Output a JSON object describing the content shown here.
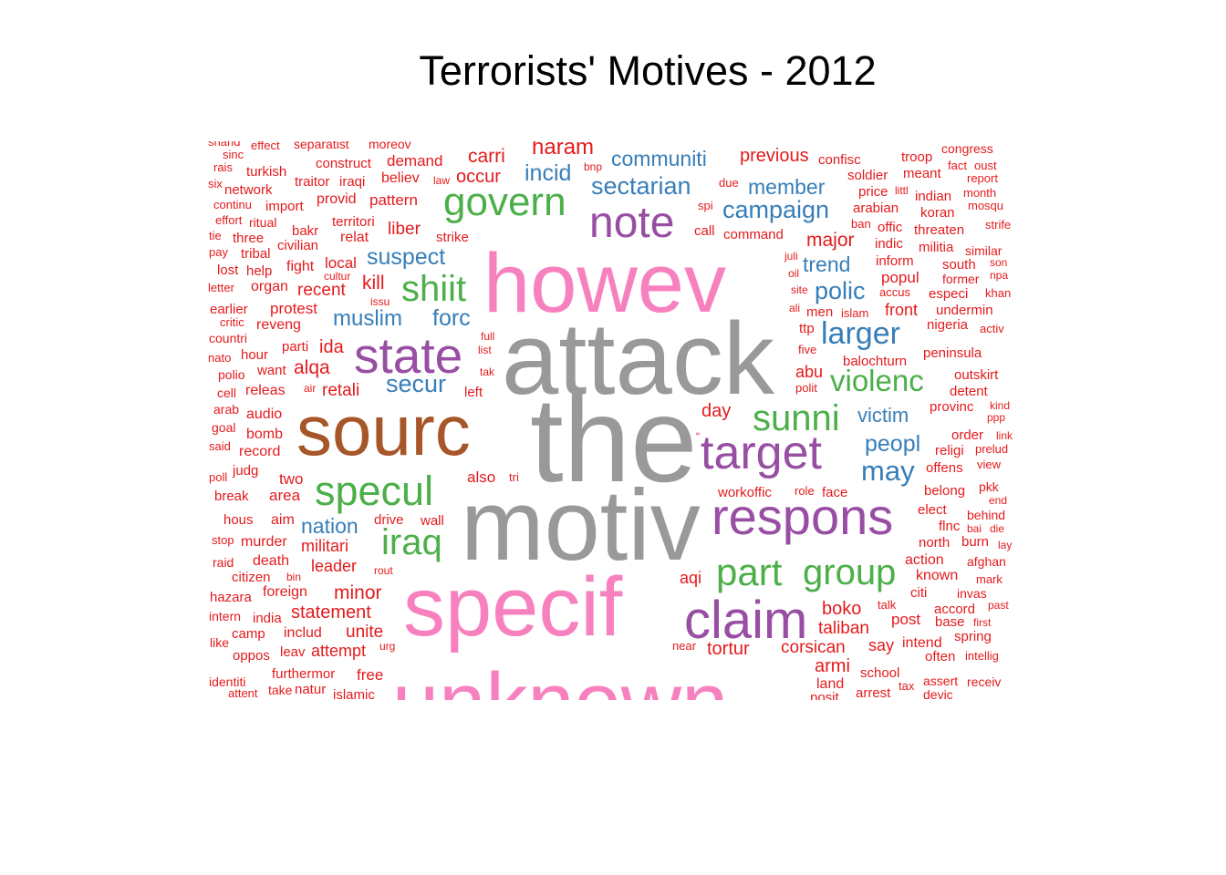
{
  "chart_data": {
    "type": "wordcloud",
    "title": "Terrorists' Motives - 2012",
    "colors": {
      "gray": "#999999",
      "pink": "#f781bf",
      "brown": "#a65628",
      "purple": "#984ea3",
      "green": "#4daf4a",
      "blue": "#377eb8",
      "red": "#e41a1c"
    },
    "words": [
      {
        "text": "the",
        "color": "gray"
      },
      {
        "text": "attack",
        "color": "gray"
      },
      {
        "text": "motiv",
        "color": "gray"
      },
      {
        "text": "howev",
        "color": "pink"
      },
      {
        "text": "specif",
        "color": "pink"
      },
      {
        "text": "unknown",
        "color": "pink"
      },
      {
        "text": "sourc",
        "color": "brown"
      },
      {
        "text": "state",
        "color": "purple"
      },
      {
        "text": "target",
        "color": "purple"
      },
      {
        "text": "respons",
        "color": "purple"
      },
      {
        "text": "claim",
        "color": "purple"
      },
      {
        "text": "note",
        "color": "purple"
      },
      {
        "text": "govern",
        "color": "green"
      },
      {
        "text": "specul",
        "color": "green"
      },
      {
        "text": "shiit",
        "color": "green"
      },
      {
        "text": "sunni",
        "color": "green"
      },
      {
        "text": "part",
        "color": "green"
      },
      {
        "text": "group",
        "color": "green"
      },
      {
        "text": "iraq",
        "color": "green"
      },
      {
        "text": "violenc",
        "color": "green"
      },
      {
        "text": "larger",
        "color": "blue"
      },
      {
        "text": "campaign",
        "color": "blue"
      },
      {
        "text": "sectarian",
        "color": "blue"
      },
      {
        "text": "member",
        "color": "blue"
      },
      {
        "text": "communiti",
        "color": "blue"
      },
      {
        "text": "incid",
        "color": "blue"
      },
      {
        "text": "polic",
        "color": "blue"
      },
      {
        "text": "may",
        "color": "blue"
      },
      {
        "text": "peopl",
        "color": "blue"
      },
      {
        "text": "suspect",
        "color": "blue"
      },
      {
        "text": "muslim",
        "color": "blue"
      },
      {
        "text": "forc",
        "color": "blue"
      },
      {
        "text": "secur",
        "color": "blue"
      },
      {
        "text": "nation",
        "color": "blue"
      },
      {
        "text": "trend",
        "color": "blue"
      },
      {
        "text": "victim",
        "color": "blue"
      },
      {
        "text": "haram",
        "color": "red"
      },
      {
        "text": "carri",
        "color": "red"
      },
      {
        "text": "occur",
        "color": "red"
      },
      {
        "text": "demand",
        "color": "red"
      },
      {
        "text": "previous",
        "color": "red"
      },
      {
        "text": "major",
        "color": "red"
      },
      {
        "text": "kill",
        "color": "red"
      },
      {
        "text": "liber",
        "color": "red"
      },
      {
        "text": "pattern",
        "color": "red"
      },
      {
        "text": "alqa",
        "color": "red"
      },
      {
        "text": "ida",
        "color": "red"
      },
      {
        "text": "retali",
        "color": "red"
      },
      {
        "text": "local",
        "color": "red"
      },
      {
        "text": "recent",
        "color": "red"
      },
      {
        "text": "militari",
        "color": "red"
      },
      {
        "text": "leader",
        "color": "red"
      },
      {
        "text": "minor",
        "color": "red"
      },
      {
        "text": "statement",
        "color": "red"
      },
      {
        "text": "unite",
        "color": "red"
      },
      {
        "text": "attempt",
        "color": "red"
      },
      {
        "text": "boko",
        "color": "red"
      },
      {
        "text": "taliban",
        "color": "red"
      },
      {
        "text": "corsican",
        "color": "red"
      },
      {
        "text": "tortur",
        "color": "red"
      },
      {
        "text": "aqi",
        "color": "red"
      },
      {
        "text": "abu",
        "color": "red"
      },
      {
        "text": "day",
        "color": "red"
      },
      {
        "text": "also",
        "color": "red"
      },
      {
        "text": "front",
        "color": "red"
      },
      {
        "text": "armi",
        "color": "red"
      },
      {
        "text": "say",
        "color": "red"
      },
      {
        "text": "post",
        "color": "red"
      },
      {
        "text": "two",
        "color": "red"
      },
      {
        "text": "area",
        "color": "red"
      },
      {
        "text": "reveng",
        "color": "red"
      },
      {
        "text": "protest",
        "color": "red"
      },
      {
        "text": "organ",
        "color": "red"
      },
      {
        "text": "fight",
        "color": "red"
      },
      {
        "text": "relat",
        "color": "red"
      },
      {
        "text": "provid",
        "color": "red"
      },
      {
        "text": "territori",
        "color": "red"
      },
      {
        "text": "construct",
        "color": "red"
      },
      {
        "text": "believ",
        "color": "red"
      },
      {
        "text": "iraqi",
        "color": "red"
      },
      {
        "text": "traitor",
        "color": "red"
      },
      {
        "text": "turkish",
        "color": "red"
      },
      {
        "text": "network",
        "color": "red"
      },
      {
        "text": "import",
        "color": "red"
      },
      {
        "text": "ritual",
        "color": "red"
      },
      {
        "text": "bakr",
        "color": "red"
      },
      {
        "text": "civilian",
        "color": "red"
      },
      {
        "text": "tribal",
        "color": "red"
      },
      {
        "text": "three",
        "color": "red"
      },
      {
        "text": "help",
        "color": "red"
      },
      {
        "text": "lost",
        "color": "red"
      },
      {
        "text": "strike",
        "color": "red"
      },
      {
        "text": "hour",
        "color": "red"
      },
      {
        "text": "want",
        "color": "red"
      },
      {
        "text": "parti",
        "color": "red"
      },
      {
        "text": "releas",
        "color": "red"
      },
      {
        "text": "audio",
        "color": "red"
      },
      {
        "text": "bomb",
        "color": "red"
      },
      {
        "text": "record",
        "color": "red"
      },
      {
        "text": "judg",
        "color": "red"
      },
      {
        "text": "break",
        "color": "red"
      },
      {
        "text": "hous",
        "color": "red"
      },
      {
        "text": "aim",
        "color": "red"
      },
      {
        "text": "murder",
        "color": "red"
      },
      {
        "text": "death",
        "color": "red"
      },
      {
        "text": "citizen",
        "color": "red"
      },
      {
        "text": "foreign",
        "color": "red"
      },
      {
        "text": "hazara",
        "color": "red"
      },
      {
        "text": "india",
        "color": "red"
      },
      {
        "text": "includ",
        "color": "red"
      },
      {
        "text": "camp",
        "color": "red"
      },
      {
        "text": "oppos",
        "color": "red"
      },
      {
        "text": "leav",
        "color": "red"
      },
      {
        "text": "furthermor",
        "color": "red"
      },
      {
        "text": "free",
        "color": "red"
      },
      {
        "text": "natur",
        "color": "red"
      },
      {
        "text": "islamic",
        "color": "red"
      },
      {
        "text": "drive",
        "color": "red"
      },
      {
        "text": "wall",
        "color": "red"
      },
      {
        "text": "command",
        "color": "red"
      },
      {
        "text": "call",
        "color": "red"
      },
      {
        "text": "soldier",
        "color": "red"
      },
      {
        "text": "price",
        "color": "red"
      },
      {
        "text": "arabian",
        "color": "red"
      },
      {
        "text": "offic",
        "color": "red"
      },
      {
        "text": "indic",
        "color": "red"
      },
      {
        "text": "inform",
        "color": "red"
      },
      {
        "text": "popul",
        "color": "red"
      },
      {
        "text": "balochturn",
        "color": "red"
      },
      {
        "text": "peninsula",
        "color": "red"
      },
      {
        "text": "detent",
        "color": "red"
      },
      {
        "text": "outskirt",
        "color": "red"
      },
      {
        "text": "provinc",
        "color": "red"
      },
      {
        "text": "order",
        "color": "red"
      },
      {
        "text": "religi",
        "color": "red"
      },
      {
        "text": "offens",
        "color": "red"
      },
      {
        "text": "belong",
        "color": "red"
      },
      {
        "text": "elect",
        "color": "red"
      },
      {
        "text": "flnc",
        "color": "red"
      },
      {
        "text": "north",
        "color": "red"
      },
      {
        "text": "burn",
        "color": "red"
      },
      {
        "text": "action",
        "color": "red"
      },
      {
        "text": "known",
        "color": "red"
      },
      {
        "text": "citi",
        "color": "red"
      },
      {
        "text": "accord",
        "color": "red"
      },
      {
        "text": "base",
        "color": "red"
      },
      {
        "text": "spring",
        "color": "red"
      },
      {
        "text": "intend",
        "color": "red"
      },
      {
        "text": "often",
        "color": "red"
      },
      {
        "text": "assert",
        "color": "red"
      },
      {
        "text": "receiv",
        "color": "red"
      },
      {
        "text": "devic",
        "color": "red"
      },
      {
        "text": "arrest",
        "color": "red"
      },
      {
        "text": "school",
        "color": "red"
      },
      {
        "text": "land",
        "color": "red"
      },
      {
        "text": "posit",
        "color": "red"
      },
      {
        "text": "confisc",
        "color": "red"
      },
      {
        "text": "troop",
        "color": "red"
      },
      {
        "text": "meant",
        "color": "red"
      },
      {
        "text": "congress",
        "color": "red"
      },
      {
        "text": "fact",
        "color": "red"
      },
      {
        "text": "oust",
        "color": "red"
      },
      {
        "text": "report",
        "color": "red"
      },
      {
        "text": "month",
        "color": "red"
      },
      {
        "text": "mosqu",
        "color": "red"
      },
      {
        "text": "indian",
        "color": "red"
      },
      {
        "text": "koran",
        "color": "red"
      },
      {
        "text": "threaten",
        "color": "red"
      },
      {
        "text": "strife",
        "color": "red"
      },
      {
        "text": "militia",
        "color": "red"
      },
      {
        "text": "similar",
        "color": "red"
      },
      {
        "text": "south",
        "color": "red"
      },
      {
        "text": "son",
        "color": "red"
      },
      {
        "text": "former",
        "color": "red"
      },
      {
        "text": "npa",
        "color": "red"
      },
      {
        "text": "especi",
        "color": "red"
      },
      {
        "text": "khan",
        "color": "red"
      },
      {
        "text": "undermin",
        "color": "red"
      },
      {
        "text": "nigeria",
        "color": "red"
      },
      {
        "text": "activ",
        "color": "red"
      },
      {
        "text": "kind",
        "color": "red"
      },
      {
        "text": "ppp",
        "color": "red"
      },
      {
        "text": "link",
        "color": "red"
      },
      {
        "text": "prelud",
        "color": "red"
      },
      {
        "text": "view",
        "color": "red"
      },
      {
        "text": "pkk",
        "color": "red"
      },
      {
        "text": "end",
        "color": "red"
      },
      {
        "text": "behind",
        "color": "red"
      },
      {
        "text": "bai",
        "color": "red"
      },
      {
        "text": "die",
        "color": "red"
      },
      {
        "text": "lay",
        "color": "red"
      },
      {
        "text": "afghan",
        "color": "red"
      },
      {
        "text": "mark",
        "color": "red"
      },
      {
        "text": "invas",
        "color": "red"
      },
      {
        "text": "past",
        "color": "red"
      },
      {
        "text": "first",
        "color": "red"
      },
      {
        "text": "intellig",
        "color": "red"
      },
      {
        "text": "tax",
        "color": "red"
      },
      {
        "text": "workoffic",
        "color": "red"
      },
      {
        "text": "role",
        "color": "red"
      },
      {
        "text": "face",
        "color": "red"
      },
      {
        "text": "men",
        "color": "red"
      },
      {
        "text": "islam",
        "color": "red"
      },
      {
        "text": "ttp",
        "color": "red"
      },
      {
        "text": "five",
        "color": "red"
      },
      {
        "text": "polit",
        "color": "red"
      },
      {
        "text": "ali",
        "color": "red"
      },
      {
        "text": "site",
        "color": "red"
      },
      {
        "text": "oil",
        "color": "red"
      },
      {
        "text": "juli",
        "color": "red"
      },
      {
        "text": "ban",
        "color": "red"
      },
      {
        "text": "littl",
        "color": "red"
      },
      {
        "text": "accus",
        "color": "red"
      },
      {
        "text": "talk",
        "color": "red"
      },
      {
        "text": "near",
        "color": "red"
      },
      {
        "text": "due",
        "color": "red"
      },
      {
        "text": "spi",
        "color": "red"
      },
      {
        "text": "bnp",
        "color": "red"
      },
      {
        "text": "law",
        "color": "red"
      },
      {
        "text": "full",
        "color": "red"
      },
      {
        "text": "list",
        "color": "red"
      },
      {
        "text": "tak",
        "color": "red"
      },
      {
        "text": "left",
        "color": "red"
      },
      {
        "text": "tri",
        "color": "red"
      },
      {
        "text": "issu",
        "color": "red"
      },
      {
        "text": "cultur",
        "color": "red"
      },
      {
        "text": "air",
        "color": "red"
      },
      {
        "text": "rout",
        "color": "red"
      },
      {
        "text": "urg",
        "color": "red"
      },
      {
        "text": "bin",
        "color": "red"
      },
      {
        "text": "take",
        "color": "red"
      },
      {
        "text": "attent",
        "color": "red"
      },
      {
        "text": "identiti",
        "color": "red"
      },
      {
        "text": "like",
        "color": "red"
      },
      {
        "text": "intern",
        "color": "red"
      },
      {
        "text": "raid",
        "color": "red"
      },
      {
        "text": "stop",
        "color": "red"
      },
      {
        "text": "poll",
        "color": "red"
      },
      {
        "text": "said",
        "color": "red"
      },
      {
        "text": "goal",
        "color": "red"
      },
      {
        "text": "arab",
        "color": "red"
      },
      {
        "text": "cell",
        "color": "red"
      },
      {
        "text": "polio",
        "color": "red"
      },
      {
        "text": "nato",
        "color": "red"
      },
      {
        "text": "countri",
        "color": "red"
      },
      {
        "text": "critic",
        "color": "red"
      },
      {
        "text": "earlier",
        "color": "red"
      },
      {
        "text": "letter",
        "color": "red"
      },
      {
        "text": "pay",
        "color": "red"
      },
      {
        "text": "tie",
        "color": "red"
      },
      {
        "text": "effort",
        "color": "red"
      },
      {
        "text": "continu",
        "color": "red"
      },
      {
        "text": "six",
        "color": "red"
      },
      {
        "text": "rais",
        "color": "red"
      },
      {
        "text": "sinc",
        "color": "red"
      },
      {
        "text": "shand",
        "color": "red"
      },
      {
        "text": "effect",
        "color": "red"
      },
      {
        "text": "separatist",
        "color": "red"
      },
      {
        "text": "moreov",
        "color": "red"
      },
      {
        "text": "“",
        "color": "red"
      }
    ]
  }
}
